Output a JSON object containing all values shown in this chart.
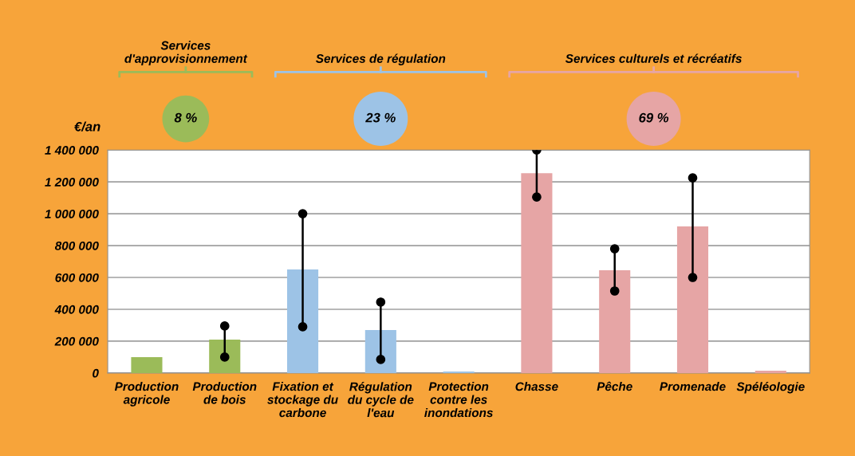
{
  "chart_data": {
    "type": "bar",
    "ylabel": "€/an",
    "categories": [
      "Production\nagricole",
      "Production\nde bois",
      "Fixation et\nstockage du\ncarbone",
      "Régulation\ndu cycle de\nl'eau",
      "Protection\ncontre les\ninondations",
      "Chasse",
      "Pêche",
      "Promenade",
      "Spéléologie"
    ],
    "series": [
      {
        "values": [
          100000,
          210000,
          650000,
          270000,
          10000,
          1255000,
          645000,
          920000,
          15000
        ],
        "colors": [
          "#9bbb59",
          "#9bbb59",
          "#9dc3e6",
          "#9dc3e6",
          "#9dc3e6",
          "#e6a5a5",
          "#e6a5a5",
          "#e6a5a5",
          "#e6a5a5"
        ]
      },
      {
        "type": "scatter",
        "color": "#000000",
        "values": [
          null,
          100000,
          290000,
          85000,
          null,
          1105000,
          515000,
          600000,
          null
        ]
      },
      {
        "type": "scatter",
        "color": "#000000",
        "values": [
          null,
          295000,
          1000000,
          445000,
          null,
          1400000,
          780000,
          1225000,
          null
        ]
      }
    ],
    "marker": "circle",
    "ylim": [
      0,
      1400000
    ],
    "yticks": [
      0,
      {
        "value": 200000,
        "label": "200 000"
      },
      {
        "value": 400000,
        "label": "400 000"
      },
      {
        "value": 600000,
        "label": "600 000"
      },
      {
        "value": 800000,
        "label": "800 000"
      },
      {
        "value": 1000000,
        "label": "1 000 000"
      },
      {
        "value": 1200000,
        "label": "1 200 000"
      },
      {
        "value": 1400000,
        "label": "1 400 000"
      }
    ],
    "grid": "y",
    "annotations": [
      "Services\nd'approvisionnement",
      "Services de régulation",
      "Services culturels et récréatifs",
      "8 %",
      "23 %",
      "69 %"
    ]
  }
}
